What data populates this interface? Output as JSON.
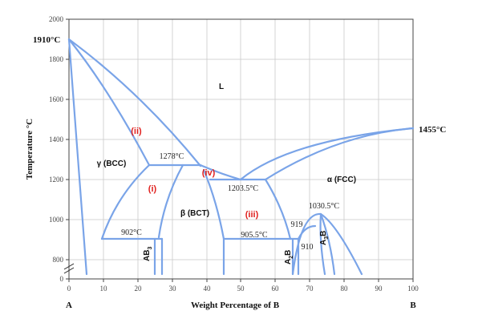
{
  "diagram": {
    "y_axis": {
      "title": "Temperature °C",
      "ticks": [
        "2000",
        "1800",
        "1600",
        "1400",
        "1200",
        "1000",
        "800",
        "0"
      ]
    },
    "x_axis": {
      "title": "Weight Percentage of B",
      "ticks": [
        "0",
        "10",
        "20",
        "30",
        "40",
        "50",
        "60",
        "70",
        "80",
        "90",
        "100"
      ],
      "left_end": "A",
      "right_end": "B"
    },
    "melting_points": {
      "left": "1910°C",
      "right": "1455°C"
    },
    "phase_labels": {
      "liquid": "L",
      "gamma": "γ (BCC)",
      "beta": "β (BCT)",
      "alpha": "α (FCC)",
      "ab3": "AB",
      "ab3_sub": "3",
      "a2b": "A",
      "a2b_sub": "2",
      "a2b_tail": "B",
      "a3b": "A",
      "a3b_sub": "3",
      "a3b_tail": "B"
    },
    "region_markers": {
      "i": "(i)",
      "ii": "(ii)",
      "iii": "(iii)",
      "iv": "(iv)"
    },
    "temperatures": {
      "t1278": "1278°C",
      "t1203": "1203.5°C",
      "t1030": "1030.5°C",
      "t919": "919",
      "t910": "910",
      "t905": "905.5°C",
      "t902": "902°C"
    },
    "colors": {
      "curve": "#7aa4e8",
      "marker": "#e0201e",
      "grid": "#c9c9c9"
    }
  }
}
